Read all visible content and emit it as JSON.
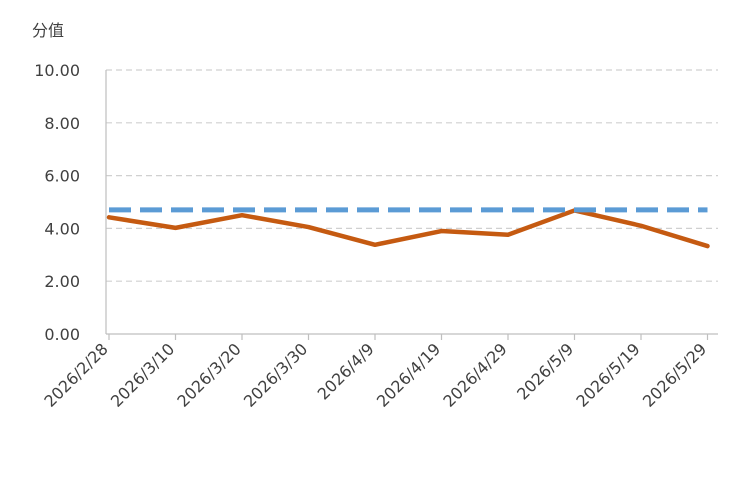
{
  "chart_data": {
    "type": "line",
    "ylabel": "分值",
    "ylim": [
      0,
      10
    ],
    "yticks": [
      "0.00",
      "2.00",
      "4.00",
      "6.00",
      "8.00",
      "10.00"
    ],
    "x": [
      "2026/2/28",
      "2026/3/10",
      "2026/3/20",
      "2026/3/30",
      "2026/4/9",
      "2026/4/19",
      "2026/4/29",
      "2026/5/9",
      "2026/5/19",
      "2026/5/29"
    ],
    "series": [
      {
        "color": "#C55A11",
        "style": "solid",
        "values": [
          4.42,
          4.02,
          4.5,
          4.05,
          3.38,
          3.9,
          3.76,
          4.68,
          4.1,
          3.33
        ]
      },
      {
        "color": "#5B9BD5",
        "style": "dashed",
        "values": [
          4.7,
          4.7,
          4.7,
          4.7,
          4.7,
          4.7,
          4.7,
          4.7,
          4.7,
          4.7
        ]
      }
    ],
    "grid": true,
    "legend": "none"
  }
}
